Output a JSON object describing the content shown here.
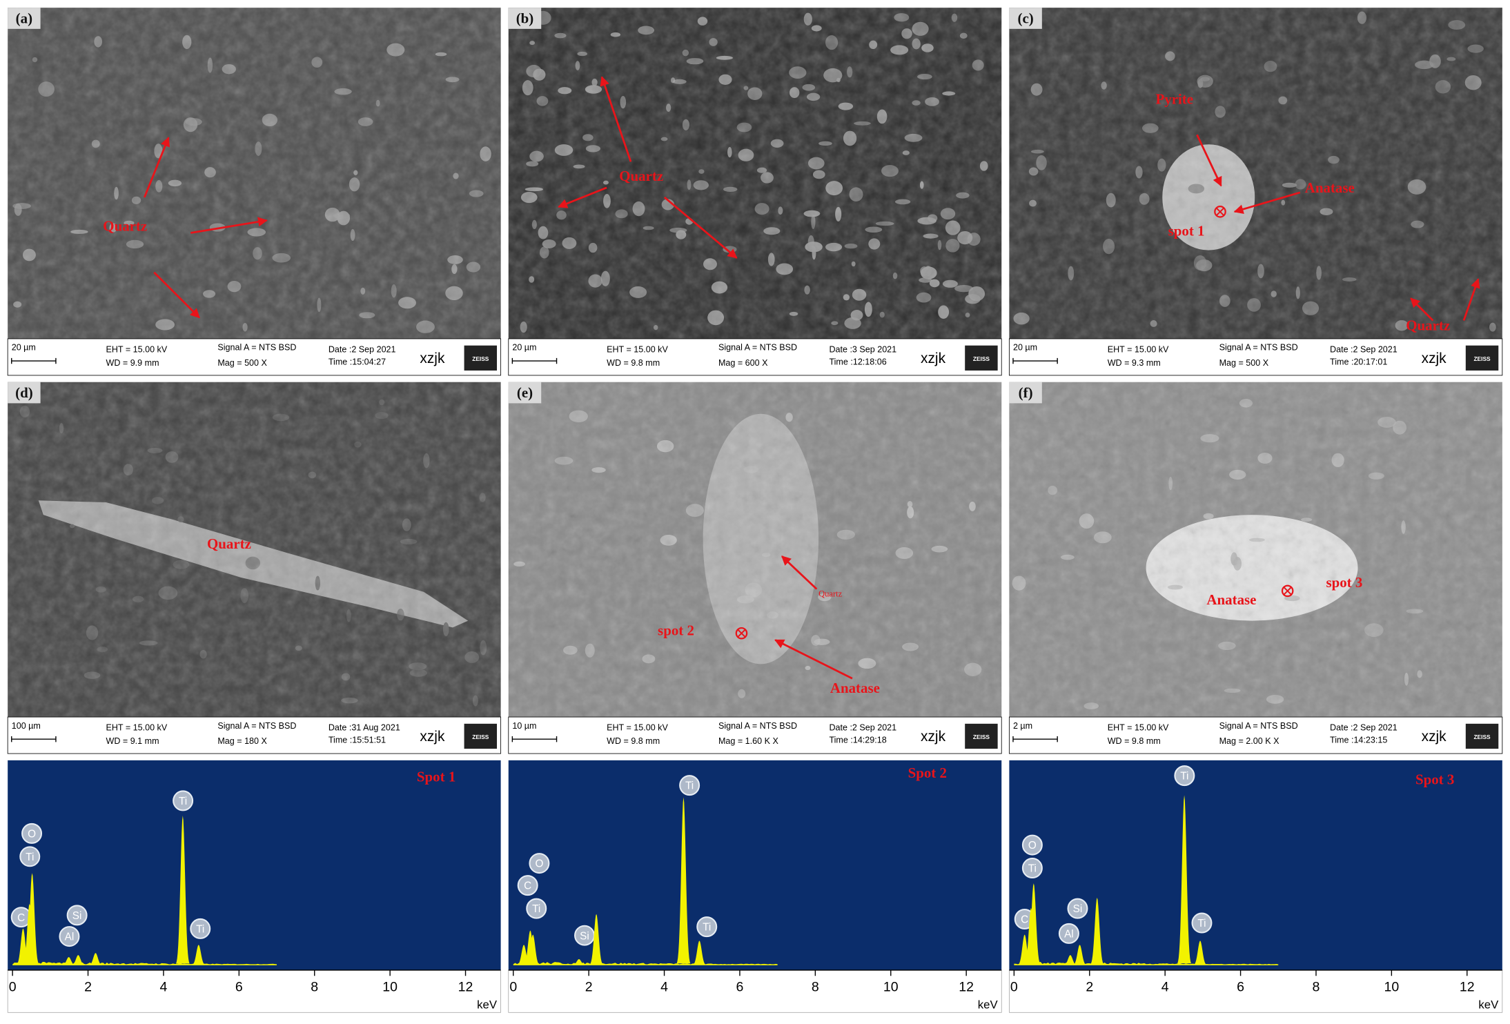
{
  "panels": [
    {
      "label": "(a)",
      "annotations": [
        "Quartz"
      ],
      "info": {
        "scale": "20 µm",
        "eht": "EHT = 15.00 kV",
        "wd": "WD =  9.9 mm",
        "signal": "Signal A = NTS BSD",
        "mag": "Mag =    500 X",
        "date": "Date :2 Sep 2021",
        "time": "Time :15:04:27",
        "user": "xzjk",
        "logo": "ZEISS"
      }
    },
    {
      "label": "(b)",
      "annotations": [
        "Quartz"
      ],
      "info": {
        "scale": "20 µm",
        "eht": "EHT = 15.00 kV",
        "wd": "WD =  9.8 mm",
        "signal": "Signal A = NTS BSD",
        "mag": "Mag =    600 X",
        "date": "Date :3 Sep 2021",
        "time": "Time :12:18:06",
        "user": "xzjk",
        "logo": "ZEISS"
      }
    },
    {
      "label": "(c)",
      "annotations": [
        "Pyrite",
        "Anatase",
        "spot 1",
        "Quartz"
      ],
      "info": {
        "scale": "20 µm",
        "eht": "EHT = 15.00 kV",
        "wd": "WD =  9.3 mm",
        "signal": "Signal A = NTS BSD",
        "mag": "Mag =    500 X",
        "date": "Date :2 Sep 2021",
        "time": "Time :20:17:01",
        "user": "xzjk",
        "logo": "ZEISS"
      }
    },
    {
      "label": "(d)",
      "annotations": [
        "Quartz"
      ],
      "info": {
        "scale": "100 µm",
        "eht": "EHT = 15.00 kV",
        "wd": "WD =  9.1 mm",
        "signal": "Signal A = NTS BSD",
        "mag": "Mag =    180 X",
        "date": "Date :31 Aug 2021",
        "time": "Time :15:51:51",
        "user": "xzjk",
        "logo": "ZEISS"
      }
    },
    {
      "label": "(e)",
      "annotations": [
        "Quartz",
        "spot 2",
        "Anatase"
      ],
      "info": {
        "scale": "10 µm",
        "eht": "EHT = 15.00 kV",
        "wd": "WD =  9.8 mm",
        "signal": "Signal A = NTS BSD",
        "mag": "Mag =   1.60 K X",
        "date": "Date :2 Sep 2021",
        "time": "Time :14:29:18",
        "user": "xzjk",
        "logo": "ZEISS"
      }
    },
    {
      "label": "(f)",
      "annotations": [
        "Anatase",
        "spot 3"
      ],
      "info": {
        "scale": "2 µm",
        "eht": "EHT = 15.00 kV",
        "wd": "WD =  9.8 mm",
        "signal": "Signal A = NTS BSD",
        "mag": "Mag =   2.00 K X",
        "date": "Date :2 Sep 2021",
        "time": "Time :14:23:15",
        "user": "xzjk",
        "logo": "ZEISS"
      }
    }
  ],
  "chart_data": [
    {
      "type": "spectrum",
      "title": "Spot 1",
      "xlabel": "keV",
      "xlim": [
        0,
        13
      ],
      "xticks": [
        0,
        2,
        4,
        6,
        8,
        10,
        12
      ],
      "ylim": [
        0,
        100
      ],
      "color": "#f2f200",
      "x": [
        0.28,
        0.45,
        0.52,
        1.49,
        1.74,
        2.2,
        4.51,
        4.93
      ],
      "values": [
        18,
        30,
        45,
        4,
        5,
        6,
        73,
        10
      ],
      "labels": [
        "C",
        "Ti",
        "O",
        "Al",
        "Si",
        null,
        "Ti",
        "Ti"
      ]
    },
    {
      "type": "spectrum",
      "title": "Spot 2",
      "xlabel": "keV",
      "xlim": [
        0,
        13
      ],
      "xticks": [
        0,
        2,
        4,
        6,
        8,
        10,
        12
      ],
      "ylim": [
        0,
        100
      ],
      "color": "#f2f200",
      "x": [
        0.28,
        0.45,
        0.52,
        1.74,
        2.2,
        4.51,
        4.93
      ],
      "values": [
        10,
        17,
        15,
        3,
        25,
        82,
        12
      ],
      "labels": [
        "C",
        "Ti",
        "O",
        "Si",
        null,
        "Ti",
        "Ti"
      ]
    },
    {
      "type": "spectrum",
      "title": "Spot 3",
      "xlabel": "keV",
      "xlim": [
        0,
        13
      ],
      "xticks": [
        0,
        2,
        4,
        6,
        8,
        10,
        12
      ],
      "ylim": [
        0,
        100
      ],
      "color": "#f2f200",
      "x": [
        0.28,
        0.45,
        0.52,
        1.49,
        1.74,
        2.2,
        4.51,
        4.93
      ],
      "values": [
        15,
        28,
        40,
        5,
        10,
        33,
        83,
        12
      ],
      "labels": [
        "C",
        "Ti",
        "O",
        "Al",
        "Si",
        null,
        "Ti",
        "Ti"
      ]
    }
  ]
}
